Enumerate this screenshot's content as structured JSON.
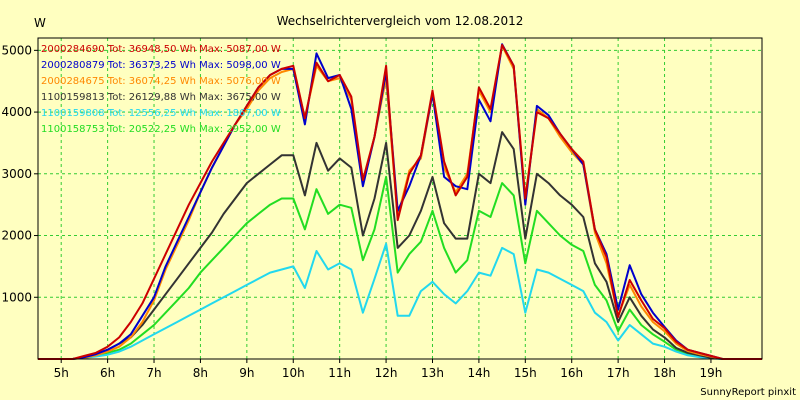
{
  "chart_data": {
    "type": "line",
    "title": "Wechselrichtervergleich vom 12.08.2012",
    "ylabel": "W",
    "xlabel": "",
    "footer": "SunnyReport pinxit",
    "ylim": [
      0,
      5200
    ],
    "xlim": [
      4.5,
      20.1
    ],
    "yticks": [
      1000,
      2000,
      3000,
      4000,
      5000
    ],
    "xticks": [
      5,
      6,
      7,
      8,
      9,
      10,
      11,
      12,
      13,
      14,
      15,
      16,
      17,
      18,
      19
    ],
    "xtick_labels": [
      "5h",
      "6h",
      "7h",
      "8h",
      "9h",
      "10h",
      "11h",
      "12h",
      "13h",
      "14h",
      "15h",
      "16h",
      "17h",
      "18h",
      "19h"
    ],
    "grid": true,
    "legend_position": "top-left",
    "x": [
      4.75,
      5.25,
      5.5,
      5.75,
      6.0,
      6.25,
      6.5,
      6.75,
      7.0,
      7.25,
      7.5,
      7.75,
      8.0,
      8.25,
      8.5,
      8.75,
      9.0,
      9.25,
      9.5,
      9.75,
      10.0,
      10.25,
      10.5,
      10.75,
      11.0,
      11.25,
      11.5,
      11.75,
      12.0,
      12.25,
      12.5,
      12.75,
      13.0,
      13.25,
      13.5,
      13.75,
      14.0,
      14.25,
      14.5,
      14.75,
      15.0,
      15.25,
      15.5,
      15.75,
      16.0,
      16.25,
      16.5,
      16.75,
      17.0,
      17.25,
      17.5,
      17.75,
      18.0,
      18.25,
      18.5,
      18.75,
      19.0,
      19.25,
      19.5
    ],
    "series": [
      {
        "name": "2000284690 Tot: 36948,50 Wh Max: 5087,00 W",
        "color": "#cc0000",
        "values": [
          0,
          0,
          50,
          100,
          200,
          350,
          600,
          900,
          1300,
          1700,
          2100,
          2500,
          2850,
          3200,
          3500,
          3800,
          4100,
          4400,
          4600,
          4700,
          4750,
          3900,
          4800,
          4500,
          4600,
          4250,
          2900,
          3600,
          4750,
          2250,
          3000,
          3300,
          4350,
          3200,
          2650,
          2950,
          4400,
          4050,
          5087,
          4750,
          2600,
          4000,
          3900,
          3650,
          3400,
          3200,
          2100,
          1650,
          680,
          1280,
          950,
          650,
          500,
          280,
          150,
          100,
          50,
          0,
          0
        ]
      },
      {
        "name": "2000280879 Tot: 36373,25 Wh Max: 5098,00 W",
        "color": "#0000cc",
        "values": [
          0,
          0,
          30,
          80,
          150,
          250,
          400,
          700,
          1000,
          1500,
          1900,
          2300,
          2700,
          3100,
          3450,
          3800,
          4100,
          4400,
          4600,
          4700,
          4700,
          3800,
          4950,
          4550,
          4600,
          4050,
          2800,
          3600,
          4650,
          2400,
          2800,
          3300,
          4300,
          2950,
          2800,
          2750,
          4200,
          3850,
          5098,
          4750,
          2500,
          4100,
          3950,
          3650,
          3400,
          3150,
          2100,
          1700,
          800,
          1520,
          1050,
          750,
          520,
          300,
          150,
          100,
          50,
          0,
          0
        ]
      },
      {
        "name": "2000284675 Tot: 36074,25 Wh Max: 5076,00 W",
        "color": "#ff8800",
        "values": [
          0,
          0,
          20,
          60,
          120,
          200,
          350,
          600,
          950,
          1450,
          1850,
          2250,
          2700,
          3100,
          3450,
          3800,
          4050,
          4350,
          4550,
          4650,
          4700,
          3900,
          4750,
          4500,
          4550,
          4200,
          2850,
          3600,
          4550,
          2300,
          3050,
          3250,
          4300,
          3100,
          2700,
          3000,
          4350,
          4000,
          5076,
          4700,
          2600,
          4050,
          3900,
          3600,
          3350,
          3150,
          2050,
          1550,
          700,
          1200,
          850,
          600,
          450,
          250,
          130,
          80,
          40,
          0,
          0
        ]
      },
      {
        "name": "1100159813 Tot: 26129,88 Wh Max: 3675,00 W",
        "color": "#333333",
        "values": [
          0,
          0,
          30,
          80,
          150,
          250,
          350,
          550,
          800,
          1050,
          1300,
          1550,
          1800,
          2050,
          2350,
          2600,
          2850,
          3000,
          3150,
          3300,
          3300,
          2650,
          3500,
          3050,
          3250,
          3100,
          2000,
          2600,
          3500,
          1800,
          2000,
          2400,
          2950,
          2200,
          1950,
          1950,
          3000,
          2850,
          3675,
          3400,
          1950,
          3000,
          2850,
          2650,
          2500,
          2300,
          1550,
          1250,
          600,
          1000,
          700,
          480,
          350,
          180,
          100,
          60,
          20,
          0,
          0
        ]
      },
      {
        "name": "1100159808 Tot: 12556,25 Wh Max: 1867,00 W",
        "color": "#22d8ee",
        "values": [
          0,
          0,
          20,
          40,
          70,
          120,
          200,
          300,
          400,
          500,
          600,
          700,
          800,
          900,
          1000,
          1100,
          1200,
          1300,
          1400,
          1450,
          1500,
          1150,
          1750,
          1450,
          1550,
          1450,
          750,
          1300,
          1867,
          700,
          700,
          1100,
          1250,
          1050,
          900,
          1100,
          1400,
          1350,
          1800,
          1700,
          750,
          1450,
          1400,
          1300,
          1200,
          1100,
          750,
          600,
          300,
          550,
          400,
          250,
          200,
          120,
          60,
          30,
          10,
          0,
          0
        ]
      },
      {
        "name": "1100158753 Tot: 20522,25 Wh Max: 2952,00 W",
        "color": "#22dd22",
        "values": [
          0,
          0,
          20,
          50,
          100,
          150,
          250,
          400,
          550,
          750,
          950,
          1150,
          1400,
          1600,
          1800,
          2000,
          2200,
          2350,
          2500,
          2600,
          2600,
          2100,
          2750,
          2350,
          2500,
          2450,
          1600,
          2100,
          2952,
          1400,
          1700,
          1900,
          2400,
          1800,
          1400,
          1600,
          2400,
          2300,
          2850,
          2650,
          1550,
          2400,
          2200,
          2000,
          1850,
          1750,
          1200,
          950,
          450,
          800,
          550,
          400,
          280,
          150,
          80,
          40,
          20,
          0,
          0
        ]
      }
    ]
  }
}
